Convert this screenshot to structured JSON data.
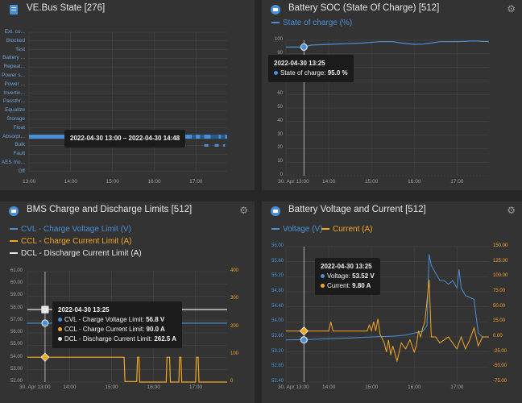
{
  "colors": {
    "blue": "#4a90d9",
    "orange": "#f5a623",
    "white": "#e6e6e6",
    "grid": "#4a4a4a",
    "panel": "#333333"
  },
  "panels": {
    "vebus": {
      "title": "VE.Bus State [276]",
      "states": [
        "Ext. co...",
        "Blocked",
        "Test",
        "Battery ...",
        "Repeat...",
        "Power s...",
        "Power ...",
        "Invertin...",
        "Passthr...",
        "Equalize",
        "Storage",
        "Float",
        "Absorpt...",
        "Bulk",
        "Fault",
        "AES mo...",
        "Off"
      ],
      "x_ticks": [
        "13:00",
        "14:00",
        "15:00",
        "16:00",
        "17:00"
      ],
      "tooltip": "2022-04-30 13:00 – 2022-04-30 14:48"
    },
    "soc": {
      "title": "Battery SOC (State Of Charge) [512]",
      "legend": "State of charge (%)",
      "y_ticks": [
        "100",
        "90",
        "80",
        "70",
        "60",
        "50",
        "40",
        "30",
        "20",
        "10",
        "0"
      ],
      "x_ticks": [
        "30. Apr 13:00",
        "14:00",
        "15:00",
        "16:00",
        "17:00"
      ],
      "tooltip_time": "2022-04-30 13:25",
      "tooltip_label": "State of charge:",
      "tooltip_value": "95.0 %"
    },
    "bms": {
      "title": "BMS Charge and Discharge Limits [512]",
      "legend_cvl": "CVL - Charge Voltage Limit (V)",
      "legend_ccl": "CCL - Charge Current Limit (A)",
      "legend_dcl": "DCL - Discharge Current Limit (A)",
      "y_left": [
        "61.00",
        "60.00",
        "59.00",
        "58.00",
        "57.00",
        "56.00",
        "55.00",
        "54.00",
        "53.00",
        "52.00"
      ],
      "y_right": [
        "400",
        "300",
        "200",
        "100",
        "0"
      ],
      "x_ticks": [
        "30. Apr 13:00",
        "14:00",
        "15:00",
        "16:00",
        "17:00"
      ],
      "tooltip_time": "2022-04-30 13:25",
      "tooltip_rows": [
        {
          "label": "CVL - Charge Voltage Limit:",
          "value": "56.8 V",
          "color": "#4a90d9"
        },
        {
          "label": "CCL - Charge Current Limit:",
          "value": "90.0 A",
          "color": "#f5a623"
        },
        {
          "label": "DCL - Discharge Current Limit:",
          "value": "262.5 A",
          "color": "#e6e6e6"
        }
      ]
    },
    "vc": {
      "title": "Battery Voltage and Current [512]",
      "legend_v": "Voltage (V)",
      "legend_c": "Current (A)",
      "y_left": [
        "56.00",
        "55.60",
        "55.20",
        "54.80",
        "54.40",
        "54.00",
        "53.60",
        "53.20",
        "52.80",
        "52.40"
      ],
      "y_right": [
        "150.00",
        "125.00",
        "100.00",
        "75.00",
        "50.00",
        "25.00",
        "0.00",
        "-25.00",
        "-50.00",
        "-75.00"
      ],
      "x_ticks": [
        "30. Apr 13:00",
        "14:00",
        "15:00",
        "16:00",
        "17:00"
      ],
      "tooltip_time": "2022-04-30 13:25",
      "tooltip_rows": [
        {
          "label": "Voltage:",
          "value": "53.52 V",
          "color": "#4a90d9"
        },
        {
          "label": "Current:",
          "value": "9.80 A",
          "color": "#f5a623"
        }
      ]
    }
  },
  "chart_data": [
    {
      "type": "line",
      "title": "VE.Bus State [276]",
      "note": "state timeline; Absorption band 13:00–17:45, scattered Bulk segments",
      "x": [
        "13:00",
        "14:48",
        "17:45"
      ]
    },
    {
      "type": "line",
      "title": "Battery SOC (State Of Charge) [512]",
      "x": [
        "13:00",
        "13:25",
        "14:00",
        "15:00",
        "15:30",
        "16:00",
        "16:30",
        "17:00",
        "17:45"
      ],
      "series": [
        {
          "name": "State of charge (%)",
          "values": [
            95,
            95,
            97,
            98,
            99,
            97,
            99,
            99,
            99
          ]
        }
      ],
      "ylim": [
        0,
        100
      ]
    },
    {
      "type": "line",
      "title": "BMS Charge and Discharge Limits [512]",
      "x": [
        "13:00",
        "13:25",
        "14:00",
        "15:00",
        "16:00",
        "17:00",
        "17:45"
      ],
      "series": [
        {
          "name": "CVL - Charge Voltage Limit (V)",
          "values": [
            56.8,
            56.8,
            56.8,
            56.8,
            56.8,
            56.8,
            56.8
          ]
        },
        {
          "name": "CCL - Charge Current Limit (A)",
          "values": [
            90,
            90,
            90,
            90,
            0,
            0,
            0
          ]
        },
        {
          "name": "DCL - Discharge Current Limit (A)",
          "values": [
            262.5,
            262.5,
            262.5,
            262.5,
            262.5,
            262.5,
            262.5
          ]
        }
      ]
    },
    {
      "type": "line",
      "title": "Battery Voltage and Current [512]",
      "x": [
        "13:00",
        "13:25",
        "14:00",
        "15:00",
        "16:00",
        "16:30",
        "17:00",
        "17:45"
      ],
      "series": [
        {
          "name": "Voltage (V)",
          "values": [
            53.5,
            53.52,
            53.55,
            53.6,
            53.7,
            55.6,
            54.8,
            53.6
          ]
        },
        {
          "name": "Current (A)",
          "values": [
            9.8,
            9.8,
            9.8,
            9.8,
            0,
            100,
            0,
            0
          ]
        }
      ]
    }
  ]
}
